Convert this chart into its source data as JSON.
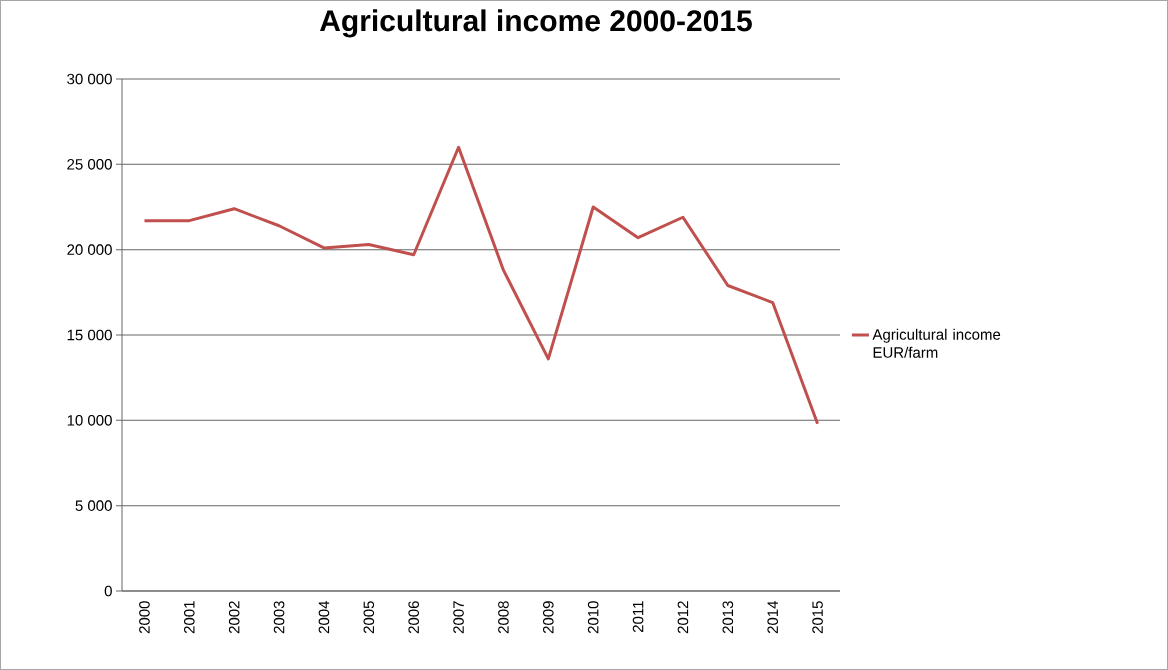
{
  "chart_data": {
    "type": "line",
    "title": "Agricultural income 2000-2015",
    "categories": [
      "2000",
      "2001",
      "2002",
      "2003",
      "2004",
      "2005",
      "2006",
      "2007",
      "2008",
      "2009",
      "2010",
      "2011",
      "2012",
      "2013",
      "2014",
      "2015"
    ],
    "series": [
      {
        "name": "Agricultural income EUR/farm",
        "color": "#c0504d",
        "values": [
          21700,
          21700,
          22400,
          21400,
          20100,
          20300,
          19700,
          26000,
          18800,
          13600,
          22500,
          20700,
          21900,
          17900,
          16900,
          9800
        ]
      }
    ],
    "ylim": [
      0,
      30000
    ],
    "yticks": [
      {
        "value": 0,
        "label": "0"
      },
      {
        "value": 5000,
        "label": "5 000"
      },
      {
        "value": 10000,
        "label": "10 000"
      },
      {
        "value": 15000,
        "label": "15 000"
      },
      {
        "value": 20000,
        "label": "20 000"
      },
      {
        "value": 25000,
        "label": "25 000"
      },
      {
        "value": 30000,
        "label": "30 000"
      }
    ],
    "grid": "y",
    "legend": "right",
    "marker": "none",
    "line_style": "solid"
  }
}
